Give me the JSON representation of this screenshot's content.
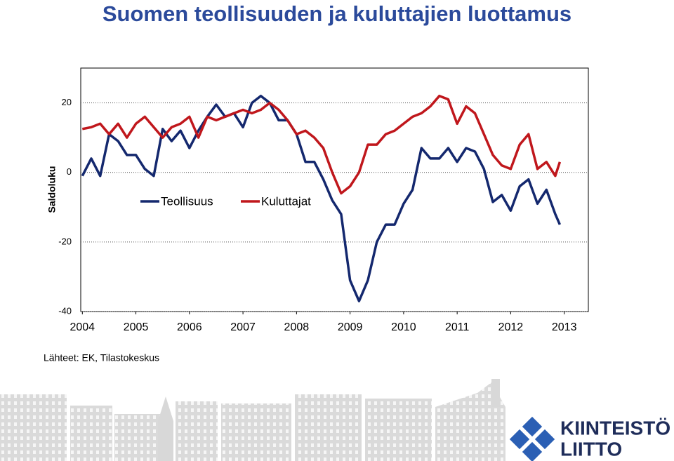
{
  "chart_data": {
    "type": "line",
    "title": "Suomen teollisuuden ja kuluttajien luottamus",
    "y_label": "Saldoluku",
    "source": "Lähteet: EK, Tilastokeskus",
    "x": [
      2004.0,
      2004.167,
      2004.333,
      2004.5,
      2004.667,
      2004.833,
      2005.0,
      2005.167,
      2005.333,
      2005.5,
      2005.667,
      2005.833,
      2006.0,
      2006.167,
      2006.333,
      2006.5,
      2006.667,
      2006.833,
      2007.0,
      2007.167,
      2007.333,
      2007.5,
      2007.667,
      2007.833,
      2008.0,
      2008.167,
      2008.333,
      2008.5,
      2008.667,
      2008.833,
      2009.0,
      2009.167,
      2009.333,
      2009.5,
      2009.667,
      2009.833,
      2010.0,
      2010.167,
      2010.333,
      2010.5,
      2010.667,
      2010.833,
      2011.0,
      2011.167,
      2011.333,
      2011.5,
      2011.667,
      2011.833,
      2012.0,
      2012.167,
      2012.333,
      2012.5,
      2012.667,
      2012.833,
      2012.917
    ],
    "series": [
      {
        "name": "Teollisuus",
        "color": "#14286e",
        "values": [
          -1,
          4,
          -1,
          11,
          9,
          5,
          5,
          1,
          -1,
          12.5,
          9,
          12,
          7,
          12,
          16,
          19.5,
          16,
          17,
          13,
          20,
          22,
          20,
          15,
          15,
          11,
          3,
          3,
          -2,
          -8,
          -12,
          -31,
          -37,
          -31,
          -20,
          -15,
          -15,
          -9,
          -5,
          7,
          4,
          4,
          7,
          3,
          7,
          6,
          1,
          -8.5,
          -6.5,
          -11,
          -4,
          -2,
          -9,
          -5,
          -12,
          -15
        ]
      },
      {
        "name": "Kuluttajat",
        "color": "#c0171c",
        "values": [
          12.5,
          13,
          14,
          11,
          14,
          10,
          14,
          16,
          13,
          10,
          13,
          14,
          16,
          10,
          16,
          15,
          16,
          17,
          18,
          17,
          18,
          20,
          18,
          15,
          11,
          12,
          10,
          7,
          0,
          -6,
          -4,
          0,
          8,
          8,
          11,
          12,
          14,
          16,
          17,
          19,
          22,
          21,
          14,
          19,
          17,
          11,
          5,
          2,
          1,
          8,
          11,
          1,
          3,
          -1,
          3
        ]
      }
    ],
    "xlim": [
      2003.97,
      2013.45
    ],
    "xticks": [
      2004,
      2005,
      2006,
      2007,
      2008,
      2009,
      2010,
      2011,
      2012,
      2013
    ],
    "ylim": [
      -40,
      30
    ],
    "yticks": [
      -40,
      -20,
      0,
      20
    ],
    "grid": true
  },
  "logo": [
    "KIINTEISTÖ",
    "LIITTO"
  ]
}
